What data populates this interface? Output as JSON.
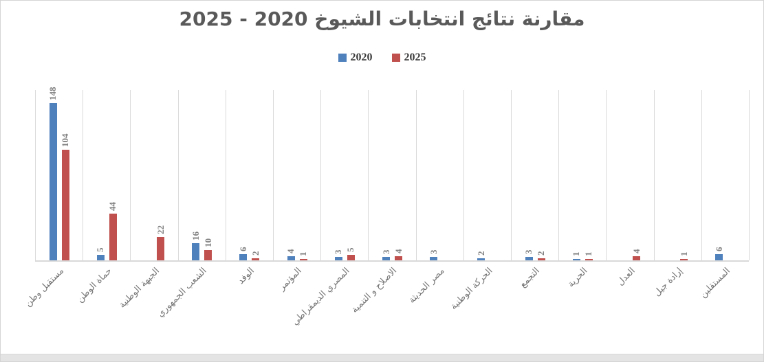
{
  "chart_data": {
    "type": "bar",
    "title": "مقارنة نتائج انتخابات الشيوخ 2020 - 2025",
    "legend_position": "top",
    "grid": "vertical category boundary lines only",
    "ylim": [
      0,
      160
    ],
    "value_labels_rotation": "90deg (vertical, bottom-to-top)",
    "category_labels_rotation": "45deg",
    "categories": [
      "مستقبل وطن",
      "حماة الوطن",
      "الجبهة الوطنية",
      "الشعب الجمهوري",
      "الوفد",
      "المؤتمر",
      "المصري الديمقراطي",
      "الاصلاح و التنمية",
      "مصر الحديثة",
      "الحركة الوطنية",
      "التجمع",
      "الحرية",
      "العدل",
      "إرادة جيل",
      "المستقلين"
    ],
    "series": [
      {
        "name": "2020",
        "color": "#4f81bd",
        "values": [
          148,
          5,
          null,
          16,
          6,
          4,
          3,
          3,
          3,
          2,
          3,
          1,
          null,
          null,
          6
        ]
      },
      {
        "name": "2025",
        "color": "#c0504d",
        "values": [
          104,
          44,
          22,
          10,
          2,
          1,
          5,
          4,
          null,
          null,
          2,
          1,
          4,
          1,
          null
        ]
      }
    ]
  },
  "colors": {
    "title_text": "#595959",
    "value_label_text": "#7f7f7f",
    "category_label_text": "#757575",
    "gridline": "#d9d9d9",
    "axis_line": "#d9d9d9",
    "canvas_border": "#d4d4d4",
    "bottom_strip": "#e4e4e4"
  }
}
